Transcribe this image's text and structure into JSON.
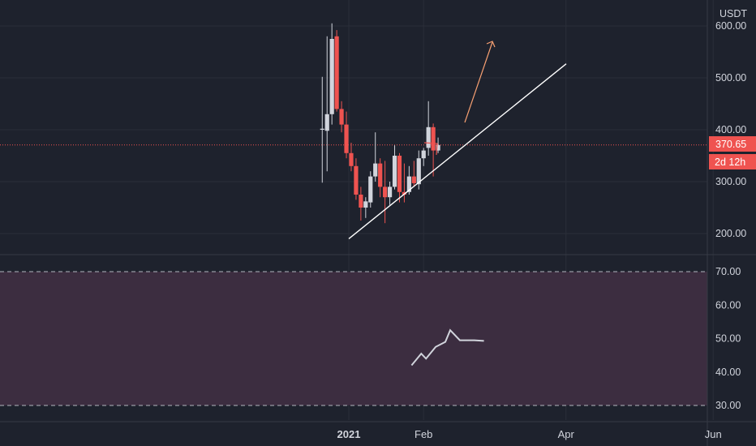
{
  "currency_label": "USDT",
  "colors": {
    "background": "#1e222d",
    "grid": "#2a2e39",
    "up": "#d1d4dc",
    "down": "#ef5350",
    "price_line": "#ef5350",
    "trendline": "#ffffff",
    "arrow": "#f7a072",
    "rsi_band": "#3c2d40",
    "rsi_line": "#d1d4dc"
  },
  "last_price_label": "370.65",
  "countdown_label": "2d 12h",
  "chart_data": [
    {
      "type": "candlestick",
      "title": "",
      "y_axis_label": "USDT",
      "ylim": [
        160,
        640
      ],
      "y_ticks": [
        200,
        300,
        400,
        500,
        600
      ],
      "y_tick_labels": [
        "200.00",
        "300.00",
        "400.00",
        "500.00",
        "600.00"
      ],
      "x_ticks": [
        "2021",
        "Feb",
        "Apr",
        "Jun"
      ],
      "last_price": 370.65,
      "candles": [
        {
          "date": "2020-12-21",
          "open": 400,
          "high": 502,
          "low": 298,
          "close": 402
        },
        {
          "date": "2020-12-23",
          "open": 398,
          "high": 580,
          "low": 320,
          "close": 430
        },
        {
          "date": "2020-12-25",
          "open": 430,
          "high": 605,
          "low": 410,
          "close": 575
        },
        {
          "date": "2020-12-27",
          "open": 580,
          "high": 592,
          "low": 435,
          "close": 440
        },
        {
          "date": "2020-12-29",
          "open": 440,
          "high": 455,
          "low": 395,
          "close": 410
        },
        {
          "date": "2020-12-31",
          "open": 410,
          "high": 435,
          "low": 345,
          "close": 355
        },
        {
          "date": "2021-01-02",
          "open": 355,
          "high": 375,
          "low": 320,
          "close": 330
        },
        {
          "date": "2021-01-04",
          "open": 330,
          "high": 345,
          "low": 265,
          "close": 275
        },
        {
          "date": "2021-01-06",
          "open": 275,
          "high": 290,
          "low": 225,
          "close": 250
        },
        {
          "date": "2021-01-08",
          "open": 250,
          "high": 270,
          "low": 230,
          "close": 262
        },
        {
          "date": "2021-01-10",
          "open": 260,
          "high": 320,
          "low": 250,
          "close": 310
        },
        {
          "date": "2021-01-12",
          "open": 310,
          "high": 395,
          "low": 300,
          "close": 335
        },
        {
          "date": "2021-01-14",
          "open": 335,
          "high": 345,
          "low": 270,
          "close": 290
        },
        {
          "date": "2021-01-16",
          "open": 290,
          "high": 340,
          "low": 220,
          "close": 270
        },
        {
          "date": "2021-01-18",
          "open": 270,
          "high": 300,
          "low": 255,
          "close": 290
        },
        {
          "date": "2021-01-20",
          "open": 290,
          "high": 370,
          "low": 285,
          "close": 350
        },
        {
          "date": "2021-01-22",
          "open": 350,
          "high": 355,
          "low": 260,
          "close": 280
        },
        {
          "date": "2021-01-24",
          "open": 280,
          "high": 335,
          "low": 260,
          "close": 275
        },
        {
          "date": "2021-01-26",
          "open": 280,
          "high": 330,
          "low": 275,
          "close": 310
        },
        {
          "date": "2021-01-28",
          "open": 310,
          "high": 340,
          "low": 290,
          "close": 297
        },
        {
          "date": "2021-01-30",
          "open": 295,
          "high": 360,
          "low": 285,
          "close": 345
        },
        {
          "date": "2021-02-01",
          "open": 345,
          "high": 365,
          "low": 330,
          "close": 360
        },
        {
          "date": "2021-02-03",
          "open": 365,
          "high": 455,
          "low": 350,
          "close": 405
        },
        {
          "date": "2021-02-05",
          "open": 405,
          "high": 412,
          "low": 310,
          "close": 360
        },
        {
          "date": "2021-02-07",
          "open": 360,
          "high": 385,
          "low": 355,
          "close": 370.65
        }
      ]
    },
    {
      "type": "line",
      "title": "",
      "ylim": [
        25,
        75
      ],
      "y_ticks": [
        30,
        40,
        50,
        60,
        70
      ],
      "y_tick_labels": [
        "30.00",
        "40.00",
        "50.00",
        "60.00",
        "70.00"
      ],
      "band": [
        30,
        70
      ],
      "x": [
        "2021-01-27",
        "2021-01-31",
        "2021-02-02",
        "2021-02-06",
        "2021-02-10",
        "2021-02-12",
        "2021-02-16",
        "2021-02-22",
        "2021-02-26"
      ],
      "values": [
        42.0,
        45.5,
        44.0,
        47.5,
        49.0,
        52.5,
        49.5,
        49.5,
        49.3
      ]
    }
  ]
}
